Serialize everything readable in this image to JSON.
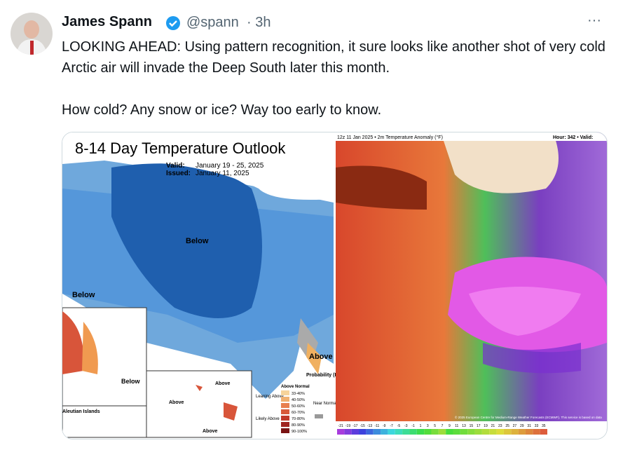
{
  "tweet": {
    "name": "James Spann",
    "handle": "@spann",
    "time": "· 3h",
    "more": "···",
    "paragraphs": [
      "LOOKING AHEAD: Using pattern recognition, it sure looks like another shot of very cold Arctic air will invade the Deep South later this month.",
      "How cold? Any snow or ice? Way too early to know."
    ]
  },
  "left_map": {
    "title": "8-14 Day Temperature Outlook",
    "valid_label": "Valid:",
    "valid": "January 19 - 25, 2025",
    "issued_label": "Issued:",
    "issued": "January 11, 2025",
    "labels": [
      "Below",
      "Below",
      "Above",
      "Below",
      "Above",
      "Above",
      "Above"
    ],
    "aleutian": "Aleutian Islands",
    "legend_title": "Probability (Percent Chance)",
    "above_normal": "Above Normal",
    "near_normal": "Near Normal",
    "leaning": "Leaning Above",
    "likely": "Likely Above",
    "ranges": [
      "33-40%",
      "40-50%",
      "50-60%",
      "60-70%",
      "70-80%",
      "80-90%",
      "90-100%"
    ]
  },
  "right_map": {
    "header": "12z 11 Jan 2025 • 2m Temperature Anomaly (°F)",
    "hour": "Hour: 342 • Valid:",
    "credit": "© 2025 European Centre for Medium-Range Weather Forecasts (ECMWF). This service is based on data",
    "colorbar": [
      "-21",
      "-19",
      "-17",
      "-15",
      "-13",
      "-11",
      "-9",
      "-7",
      "-5",
      "-3",
      "-1",
      "1",
      "3",
      "5",
      "7",
      "9",
      "11",
      "13",
      "15",
      "17",
      "19",
      "21",
      "23",
      "25",
      "27",
      "29",
      "31",
      "33",
      "35"
    ]
  }
}
